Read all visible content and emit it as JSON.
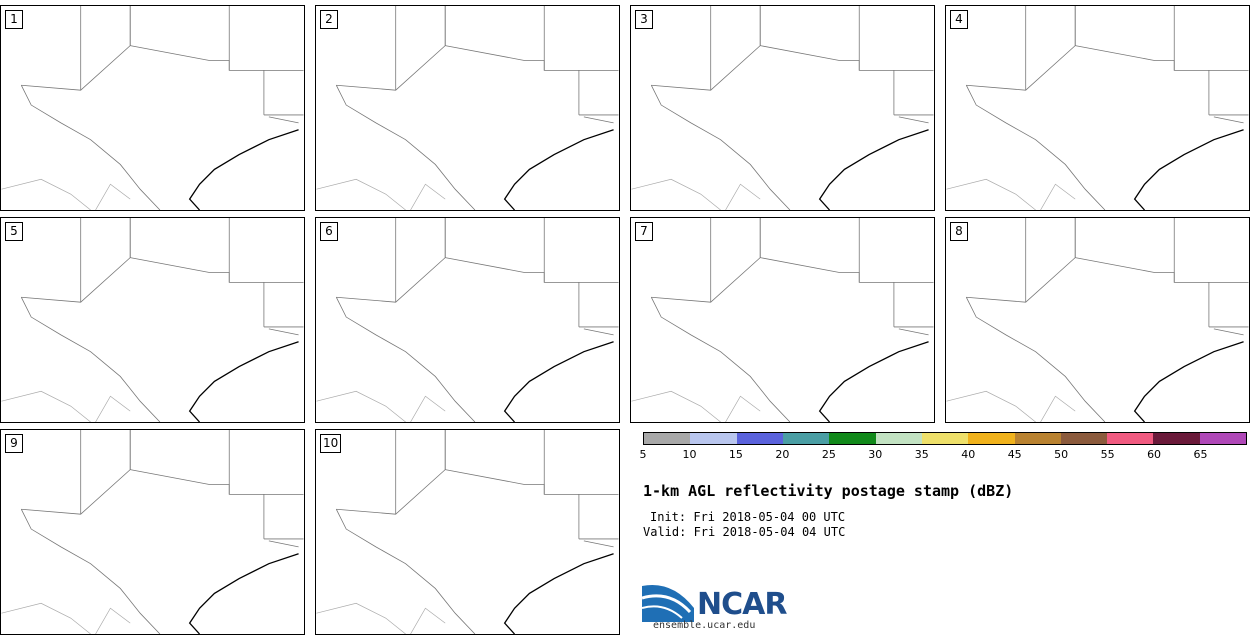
{
  "panels": [
    {
      "label": "1"
    },
    {
      "label": "2"
    },
    {
      "label": "3"
    },
    {
      "label": "4"
    },
    {
      "label": "5"
    },
    {
      "label": "6"
    },
    {
      "label": "7"
    },
    {
      "label": "8"
    },
    {
      "label": "9"
    },
    {
      "label": "10"
    }
  ],
  "colorbar": {
    "colors": [
      "#a8a8a8",
      "#b9c6ee",
      "#5a62dc",
      "#4a9ea4",
      "#11891a",
      "#c2e2c2",
      "#eee06a",
      "#f0b21c",
      "#b98230",
      "#8b5a3c",
      "#f05a80",
      "#6b1a3a",
      "#b048b8"
    ],
    "ticks": [
      "5",
      "10",
      "15",
      "20",
      "25",
      "30",
      "35",
      "40",
      "45",
      "50",
      "55",
      "60",
      "65"
    ]
  },
  "title": "1-km AGL reflectivity postage stamp (dBZ)",
  "init": "Init: Fri 2018-05-04 00 UTC",
  "valid": "Valid: Fri 2018-05-04 04 UTC",
  "logo": {
    "text": "NCAR",
    "url": "ensemble.ucar.edu"
  }
}
